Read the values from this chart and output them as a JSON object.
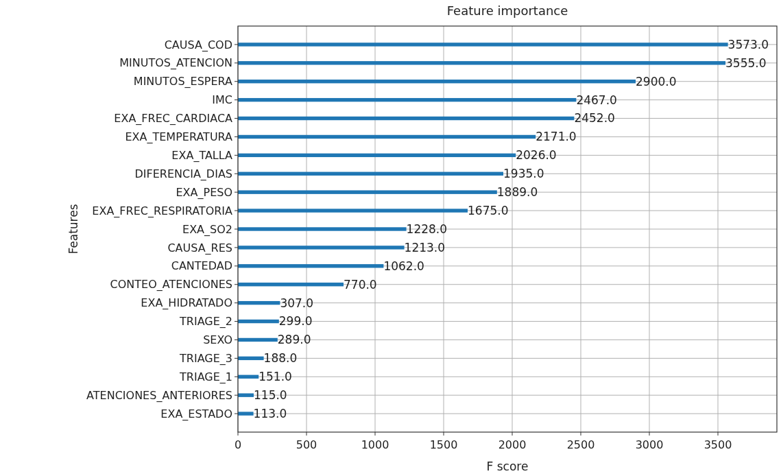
{
  "chart_data": {
    "type": "bar",
    "orientation": "horizontal",
    "title": "Feature importance",
    "xlabel": "F score",
    "ylabel": "Features",
    "categories": [
      "CAUSA_COD",
      "MINUTOS_ATENCION",
      "MINUTOS_ESPERA",
      "IMC",
      "EXA_FREC_CARDIACA",
      "EXA_TEMPERATURA",
      "EXA_TALLA",
      "DIFERENCIA_DIAS",
      "EXA_PESO",
      "EXA_FREC_RESPIRATORIA",
      "EXA_SO2",
      "CAUSA_RES",
      "CANTEDAD",
      "CONTEO_ATENCIONES",
      "EXA_HIDRATADO",
      "TRIAGE_2",
      "SEXO",
      "TRIAGE_3",
      "TRIAGE_1",
      "ATENCIONES_ANTERIORES",
      "EXA_ESTADO"
    ],
    "values": [
      3573,
      3555,
      2900,
      2467,
      2452,
      2171,
      2026,
      1935,
      1889,
      1675,
      1228,
      1213,
      1062,
      770,
      307,
      299,
      289,
      188,
      151,
      115,
      113
    ],
    "value_labels": [
      "3573.0",
      "3555.0",
      "2900.0",
      "2467.0",
      "2452.0",
      "2171.0",
      "2026.0",
      "1935.0",
      "1889.0",
      "1675.0",
      "1228.0",
      "1213.0",
      "1062.0",
      "770.0",
      "307.0",
      "299.0",
      "289.0",
      "188.0",
      "151.0",
      "115.0",
      "113.0"
    ],
    "color": "#1f77b4",
    "xlim": [
      0,
      3930
    ],
    "xticks": [
      0,
      500,
      1000,
      1500,
      2000,
      2500,
      3000,
      3500
    ],
    "grid": true
  }
}
